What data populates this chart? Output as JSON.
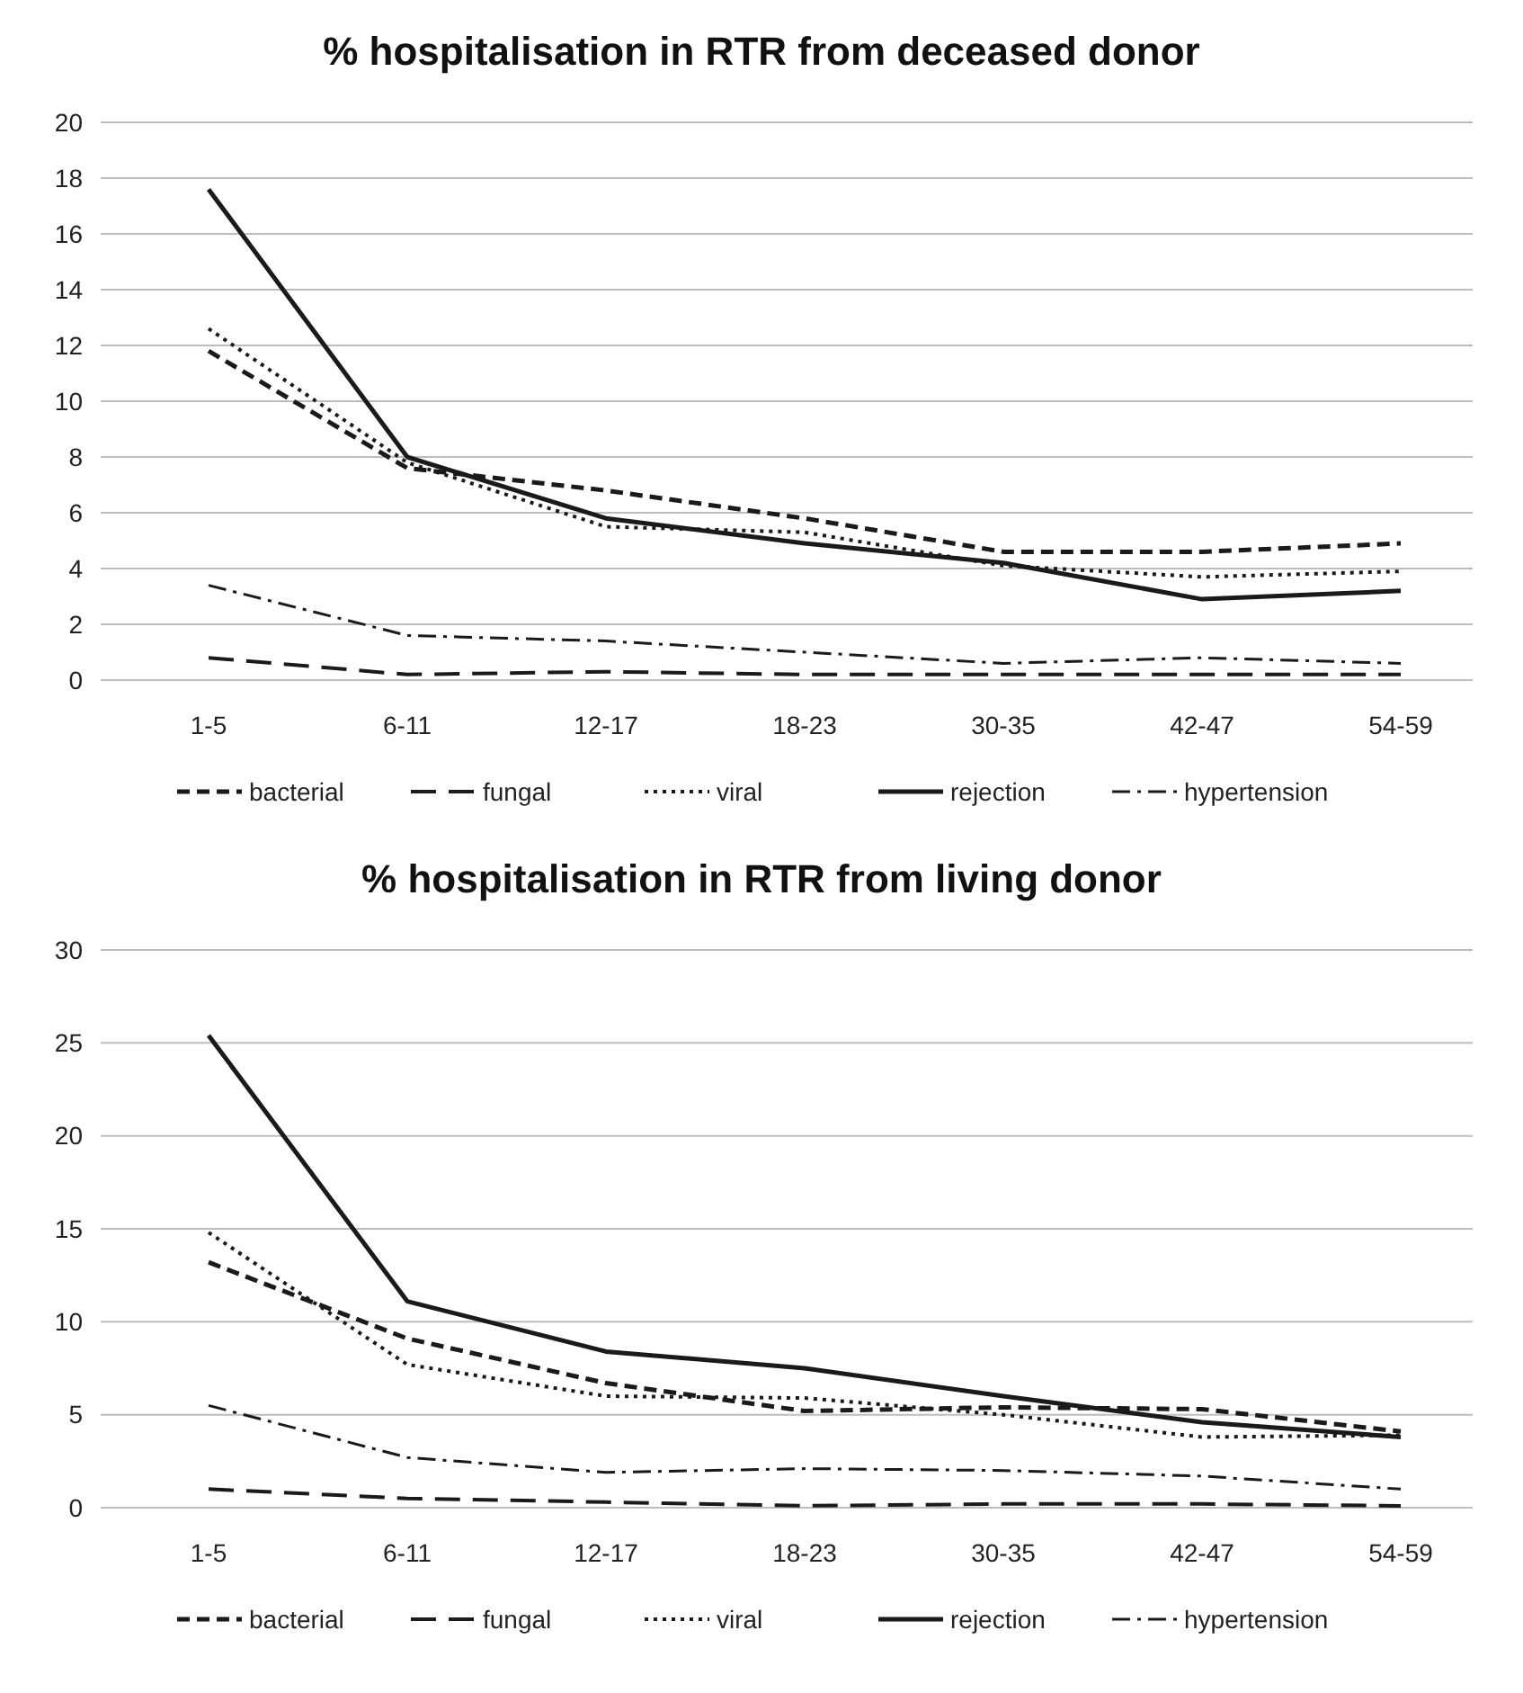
{
  "chart_data": [
    {
      "type": "line",
      "title": "% hospitalisation in RTR from deceased donor",
      "categories": [
        "1-5",
        "6-11",
        "12-17",
        "18-23",
        "30-35",
        "42-47",
        "54-59"
      ],
      "ylim": [
        0,
        20
      ],
      "yticks": [
        0,
        2,
        4,
        6,
        8,
        10,
        12,
        14,
        16,
        18,
        20
      ],
      "grid": "y",
      "legend": "bottom",
      "series": [
        {
          "name": "bacterial",
          "color": "#1a1a1a",
          "line_style": "dashed",
          "values": [
            11.8,
            7.6,
            6.8,
            5.8,
            4.6,
            4.6,
            4.9
          ]
        },
        {
          "name": "fungal",
          "color": "#1a1a1a",
          "line_style": "longdash",
          "values": [
            0.8,
            0.2,
            0.3,
            0.2,
            0.2,
            0.2,
            0.2
          ]
        },
        {
          "name": "viral",
          "color": "#1a1a1a",
          "line_style": "dotted",
          "values": [
            12.6,
            7.8,
            5.5,
            5.3,
            4.1,
            3.7,
            3.9
          ]
        },
        {
          "name": "rejection",
          "color": "#1a1a1a",
          "line_style": "solid",
          "values": [
            17.6,
            8.0,
            5.8,
            4.9,
            4.2,
            2.9,
            3.2
          ]
        },
        {
          "name": "hypertension",
          "color": "#1a1a1a",
          "line_style": "dashdot",
          "values": [
            3.4,
            1.6,
            1.4,
            1.0,
            0.6,
            0.8,
            0.6
          ]
        }
      ]
    },
    {
      "type": "line",
      "title": "% hospitalisation in RTR from living donor",
      "categories": [
        "1-5",
        "6-11",
        "12-17",
        "18-23",
        "30-35",
        "42-47",
        "54-59"
      ],
      "ylim": [
        0,
        30
      ],
      "yticks": [
        0,
        5,
        10,
        15,
        20,
        25,
        30
      ],
      "grid": "y",
      "legend": "bottom",
      "series": [
        {
          "name": "bacterial",
          "color": "#1a1a1a",
          "line_style": "dashed",
          "values": [
            13.2,
            9.1,
            6.7,
            5.2,
            5.4,
            5.3,
            4.1
          ]
        },
        {
          "name": "fungal",
          "color": "#1a1a1a",
          "line_style": "longdash",
          "values": [
            1.0,
            0.5,
            0.3,
            0.1,
            0.2,
            0.2,
            0.1
          ]
        },
        {
          "name": "viral",
          "color": "#1a1a1a",
          "line_style": "dotted",
          "values": [
            14.8,
            7.7,
            6.0,
            5.9,
            5.0,
            3.8,
            3.9
          ]
        },
        {
          "name": "rejection",
          "color": "#1a1a1a",
          "line_style": "solid",
          "values": [
            25.4,
            11.1,
            8.4,
            7.5,
            6.0,
            4.6,
            3.8
          ]
        },
        {
          "name": "hypertension",
          "color": "#1a1a1a",
          "line_style": "dashdot",
          "values": [
            5.5,
            2.7,
            1.9,
            2.1,
            2.0,
            1.7,
            1.0
          ]
        }
      ]
    }
  ]
}
